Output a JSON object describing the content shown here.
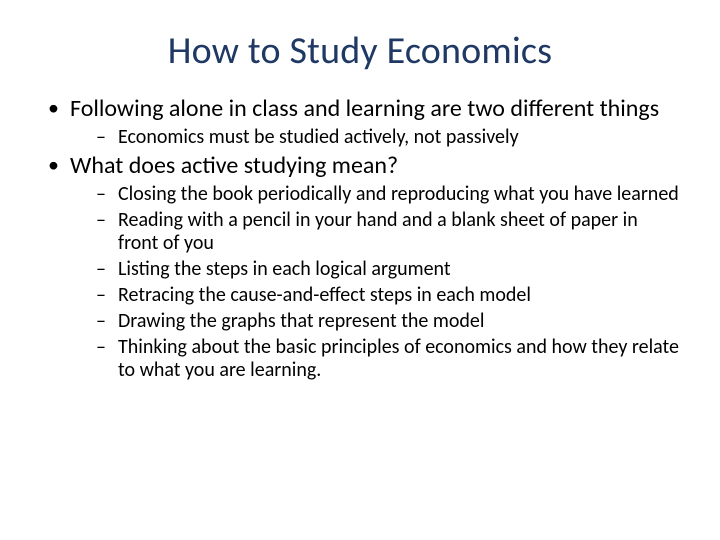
{
  "title": "How to Study Economics",
  "title_color": "#1f3864",
  "title_fontsize": 38,
  "background_color": "#ffffff",
  "text_color": "#000000",
  "body_fontsize_l1": 24,
  "body_fontsize_l2": 20,
  "bullets": {
    "b1": {
      "text": "Following alone in class and learning are two different things",
      "sub": {
        "s1": "Economics must be studied actively, not passively"
      }
    },
    "b2": {
      "text": "What does active studying mean?",
      "sub": {
        "s1": "Closing the book periodically and reproducing what you have learned",
        "s2": "Reading with a pencil in your hand and a blank sheet of paper in front of you",
        "s3": "Listing the steps in each logical argument",
        "s4": "Retracing the cause-and-effect steps in each model",
        "s5": "Drawing the graphs that represent the model",
        "s6": "Thinking about the basic principles of economics and how they relate to what you are learning."
      }
    }
  }
}
